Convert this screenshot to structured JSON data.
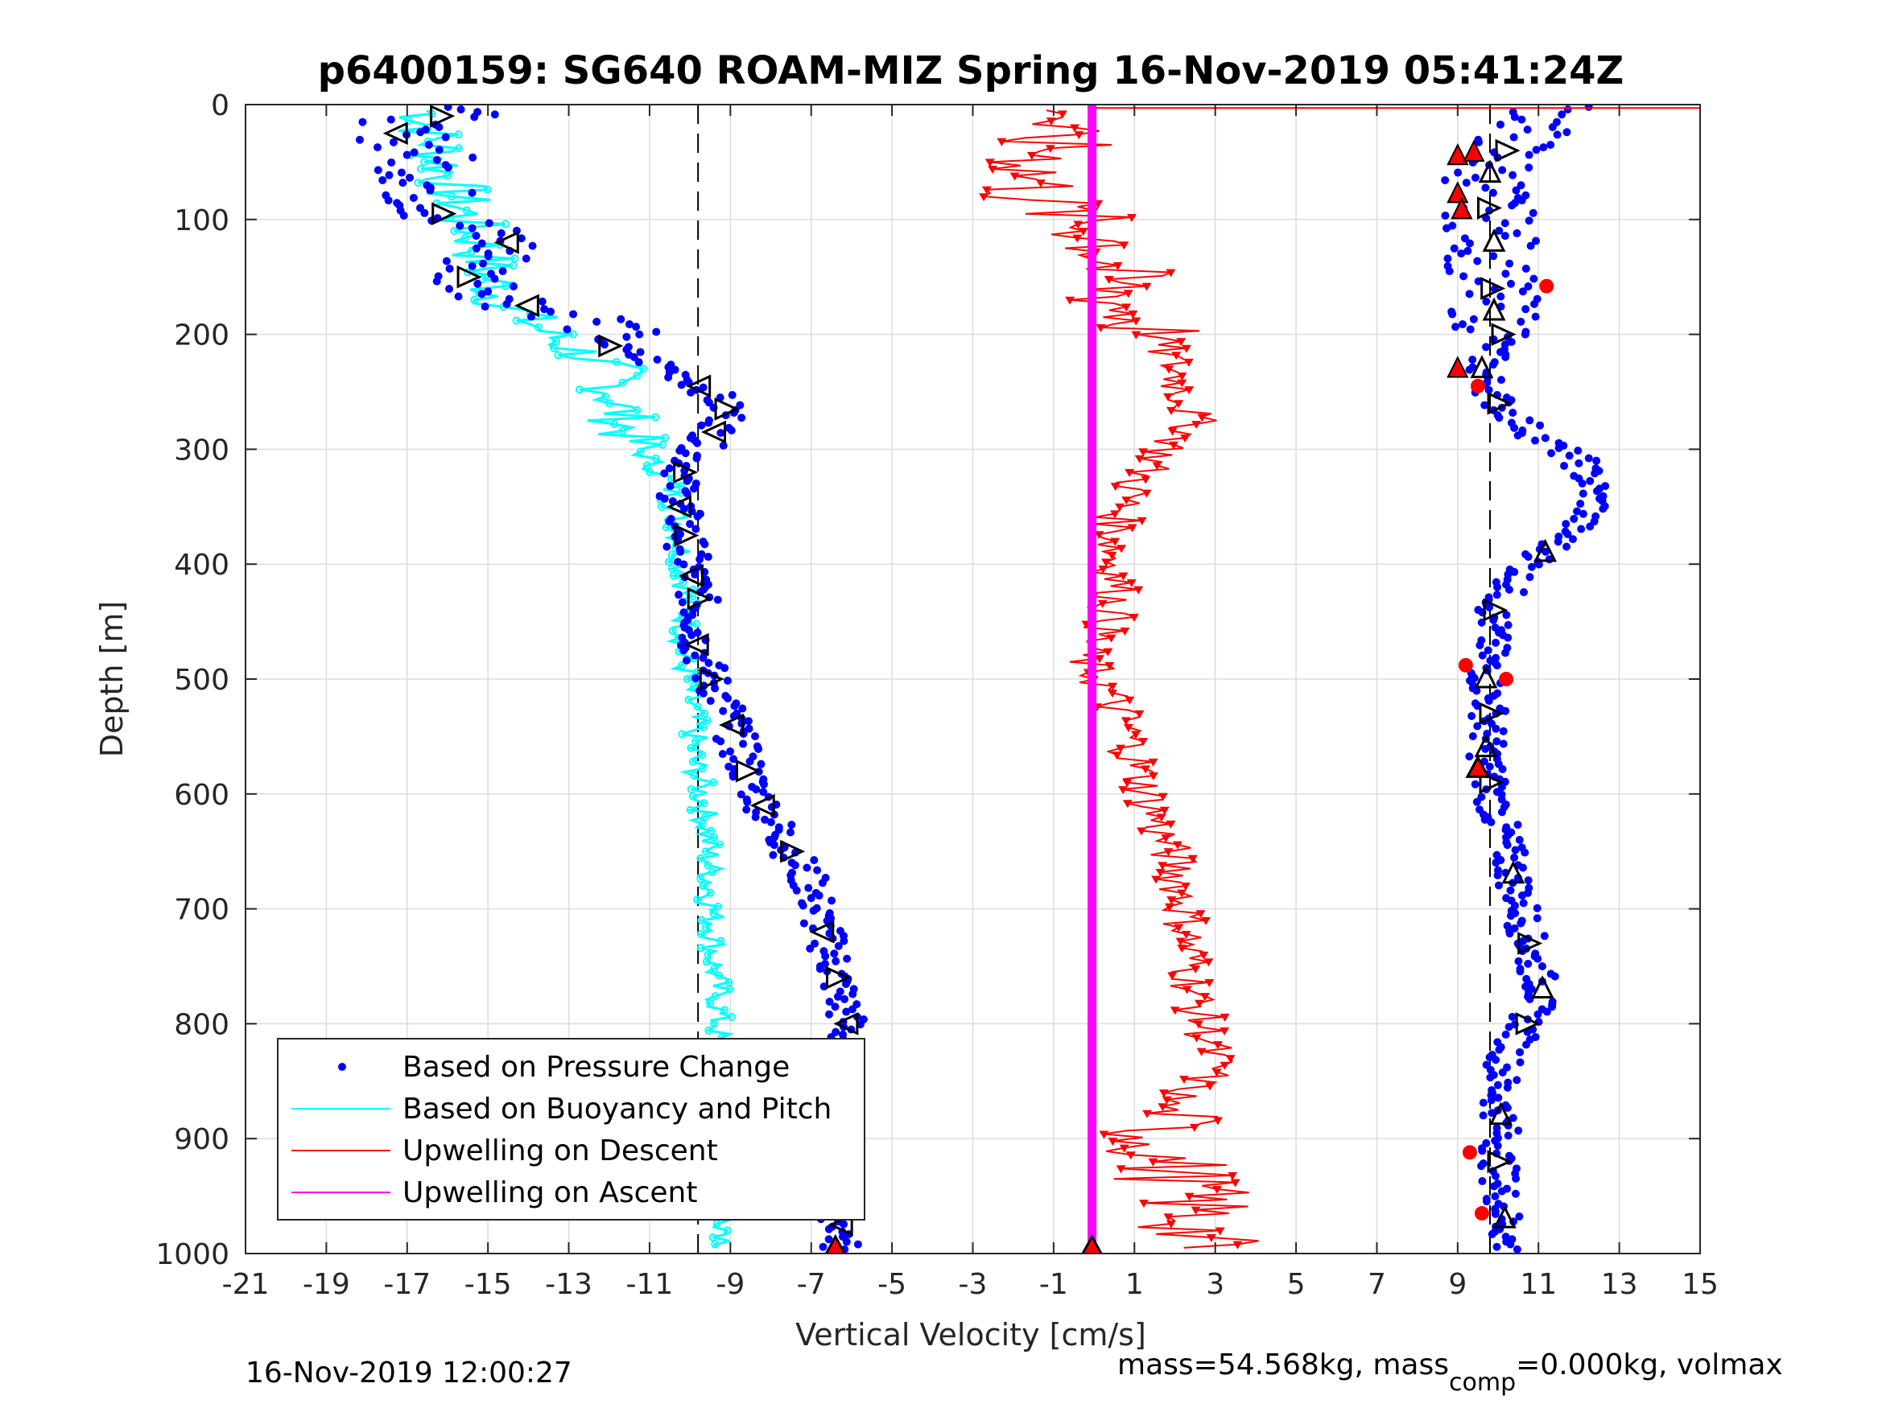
{
  "chart_data": {
    "type": "scatter",
    "title": "p6400159: SG640 ROAM-MIZ Spring 16-Nov-2019 05:41:24Z",
    "xlabel": "Vertical Velocity [cm/s]",
    "ylabel": "Depth [m]",
    "xlim": [
      -21,
      15
    ],
    "ylim": [
      1000,
      0
    ],
    "y_reversed": true,
    "grid": true,
    "x_ticks": [
      "-21",
      "-19",
      "-17",
      "-15",
      "-13",
      "-11",
      "-9",
      "-7",
      "-5",
      "-3",
      "-1",
      "1",
      "3",
      "5",
      "7",
      "9",
      "11",
      "13",
      "15"
    ],
    "y_ticks": [
      "0",
      "100",
      "200",
      "300",
      "400",
      "500",
      "600",
      "700",
      "800",
      "900",
      "1000"
    ],
    "legend": {
      "position": "bottom-left",
      "entries": [
        "Based on Pressure Change",
        "Based on Buoyancy and Pitch",
        "Upwelling on Descent",
        "Upwelling on Ascent"
      ]
    },
    "reference_lines_x": [
      -9.8,
      9.8
    ],
    "series": [
      {
        "name": "Based on Pressure Change",
        "color": "#0000ff",
        "marker": "dot",
        "descent": {
          "depth": [
            5,
            20,
            40,
            60,
            80,
            100,
            120,
            150,
            175,
            190,
            210,
            230,
            250,
            270,
            290,
            310,
            330,
            360,
            380,
            400,
            430,
            470,
            500,
            530,
            560,
            590,
            620,
            650,
            680,
            710,
            740,
            770,
            800,
            830,
            860,
            890,
            920,
            950,
            980,
            995
          ],
          "velocity": [
            -15.5,
            -17.5,
            -16.5,
            -16.5,
            -16.5,
            -16,
            -14.5,
            -15.5,
            -14,
            -12,
            -12,
            -10.5,
            -9.5,
            -9,
            -9.5,
            -10,
            -10.3,
            -10.2,
            -10.1,
            -10,
            -9.8,
            -9.8,
            -9.5,
            -9,
            -8.8,
            -8.5,
            -8,
            -7.5,
            -7,
            -6.8,
            -6.5,
            -6.3,
            -6.1,
            -6.3,
            -6.5,
            -6.6,
            -6.5,
            -6.4,
            -6.2,
            -6.3
          ]
        },
        "ascent": {
          "depth": [
            5,
            20,
            40,
            60,
            80,
            100,
            120,
            150,
            180,
            200,
            230,
            260,
            290,
            310,
            330,
            350,
            380,
            410,
            440,
            470,
            500,
            530,
            560,
            590,
            620,
            660,
            700,
            740,
            770,
            800,
            830,
            860,
            890,
            920,
            950,
            980
          ],
          "velocity": [
            11.5,
            10.8,
            10.2,
            9.8,
            9.7,
            9.8,
            9.9,
            9.8,
            9.9,
            10.1,
            9.6,
            10,
            11,
            12,
            12.3,
            12.4,
            11.5,
            10.5,
            9.9,
            9.8,
            9.7,
            9.8,
            9.7,
            9.8,
            10,
            10.3,
            10.6,
            10.8,
            11.1,
            10.7,
            10.2,
            10,
            10.1,
            10,
            10.1,
            10.2
          ]
        }
      },
      {
        "name": "Based on Buoyancy and Pitch",
        "color": "#00ffff",
        "marker": "line",
        "depth": [
          5,
          20,
          40,
          60,
          80,
          100,
          120,
          150,
          175,
          200,
          230,
          260,
          290,
          310,
          330,
          360,
          390,
          420,
          450,
          480,
          510,
          540,
          570,
          600,
          630,
          660,
          690,
          720,
          750,
          780,
          810,
          840,
          870,
          900,
          930,
          960,
          990
        ],
        "velocity": [
          -16.5,
          -16.5,
          -16.2,
          -16,
          -15.8,
          -15.5,
          -15.2,
          -15,
          -14.5,
          -13.5,
          -12,
          -11.8,
          -11.5,
          -11,
          -10.5,
          -10.3,
          -10.2,
          -10.1,
          -10.1,
          -10.2,
          -10,
          -9.9,
          -9.9,
          -9.7,
          -9.6,
          -9.5,
          -9.5,
          -9.4,
          -9.4,
          -9.3,
          -9.3,
          -9.3,
          -9.2,
          -9.2,
          -9.1,
          -9.0,
          -9.1
        ]
      },
      {
        "name": "Upwelling on Descent",
        "color": "#ff0000",
        "marker": "down-triangle",
        "depth": [
          5,
          20,
          40,
          60,
          80,
          100,
          120,
          150,
          180,
          200,
          230,
          260,
          280,
          300,
          330,
          360,
          390,
          420,
          450,
          480,
          510,
          540,
          570,
          600,
          630,
          660,
          690,
          720,
          750,
          780,
          810,
          840,
          870,
          900,
          930,
          960,
          990
        ],
        "velocity": [
          0,
          -1.5,
          -1,
          -1.5,
          -1.5,
          -0.5,
          0.5,
          0.3,
          0.8,
          1.5,
          2,
          2.3,
          2.5,
          1.8,
          1,
          0.6,
          0.5,
          0.6,
          0.4,
          -0.3,
          0.3,
          0.8,
          1,
          1.3,
          1.6,
          2,
          2.2,
          2.3,
          2.4,
          2.5,
          2.8,
          3,
          1.8,
          1.5,
          2,
          2.5,
          2.5
        ]
      },
      {
        "name": "Upwelling on Ascent",
        "color": "#ff00ff",
        "marker": "line",
        "depth": [
          0,
          1000
        ],
        "velocity": [
          -0.05,
          -0.05
        ]
      }
    ]
  },
  "footer": {
    "timestamp": "16-Nov-2019 12:00:27",
    "mass_prefix": "mass=54.568kg, mass",
    "mass_sub": "comp",
    "mass_suffix": "=0.000kg, volmax"
  }
}
